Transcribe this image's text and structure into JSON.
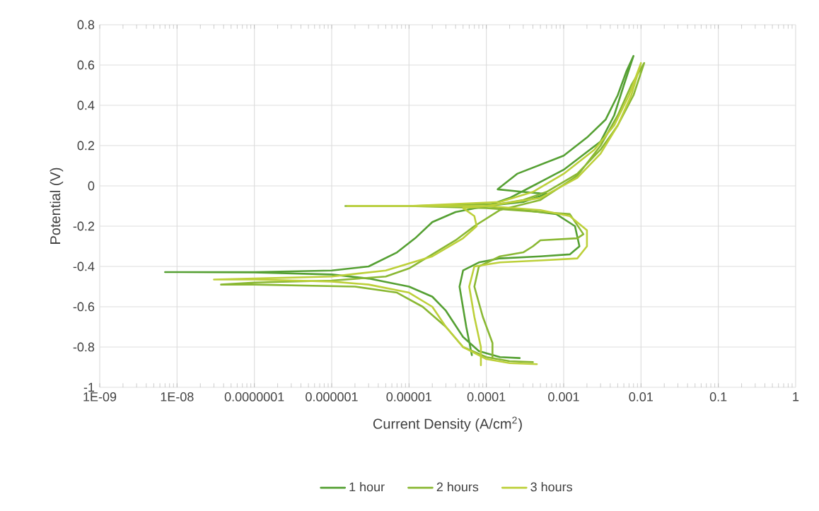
{
  "chart_data": {
    "type": "line",
    "xlabel": "Current Density (A/cm$^{2}$)",
    "ylabel": "Potential (V)",
    "log": "x",
    "xlim": [
      1e-09,
      1
    ],
    "ylim": [
      -1,
      0.8
    ],
    "xticks": [
      {
        "value": 1e-09,
        "label": "1E-09"
      },
      {
        "value": 1e-08,
        "label": "1E-08"
      },
      {
        "value": 1e-07,
        "label": "0.0000001"
      },
      {
        "value": 1e-06,
        "label": "0.000001"
      },
      {
        "value": 1e-05,
        "label": "0.00001"
      },
      {
        "value": 0.0001,
        "label": "0.0001"
      },
      {
        "value": 0.001,
        "label": "0.001"
      },
      {
        "value": 0.01,
        "label": "0.01"
      },
      {
        "value": 0.1,
        "label": "0.1"
      },
      {
        "value": 1,
        "label": "1"
      }
    ],
    "yticks": [
      -1,
      -0.8,
      -0.6,
      -0.4,
      -0.2,
      0,
      0.2,
      0.4,
      0.6,
      0.8
    ],
    "grid": true,
    "legend": "bottom",
    "marker": "none",
    "line_style": "solid",
    "series": [
      {
        "name": "1 hour",
        "color": "#55a033",
        "x": [
          0.00027,
          0.00015,
          8e-05,
          5e-05,
          3e-05,
          2e-05,
          1e-05,
          3e-06,
          1e-06,
          1e-07,
          7e-09,
          1e-07,
          1e-06,
          3e-06,
          7e-06,
          1.2e-05,
          2e-05,
          4e-05,
          0.0001,
          0.0003,
          0.0006,
          0.0003,
          0.00014,
          0.00025,
          0.001,
          0.002,
          0.0035,
          0.005,
          0.0065,
          0.008,
          0.006,
          0.0045,
          0.003,
          0.001,
          0.0004,
          0.0002,
          0.0001,
          0.0003,
          0.0008,
          0.0014,
          0.0016,
          0.0012,
          0.0005,
          0.00015,
          8e-05,
          5e-05,
          4.5e-05,
          5.5e-05,
          6.5e-05
        ],
        "values": [
          -0.855,
          -0.85,
          -0.82,
          -0.75,
          -0.62,
          -0.55,
          -0.5,
          -0.46,
          -0.44,
          -0.43,
          -0.428,
          -0.428,
          -0.42,
          -0.4,
          -0.33,
          -0.26,
          -0.18,
          -0.13,
          -0.1,
          -0.08,
          -0.04,
          -0.03,
          -0.017,
          0.06,
          0.15,
          0.24,
          0.33,
          0.45,
          0.57,
          0.645,
          0.5,
          0.35,
          0.22,
          0.08,
          0.0,
          -0.06,
          -0.1,
          -0.12,
          -0.14,
          -0.2,
          -0.3,
          -0.34,
          -0.35,
          -0.36,
          -0.38,
          -0.42,
          -0.5,
          -0.7,
          -0.84
        ]
      },
      {
        "name": "2 hours",
        "color": "#8ab833",
        "x": [
          0.0004,
          0.0002,
          0.0001,
          5e-05,
          3e-05,
          1.5e-05,
          7e-06,
          2e-06,
          1e-07,
          3.7e-08,
          1e-07,
          1e-06,
          5e-06,
          1e-05,
          2e-05,
          4e-05,
          7e-05,
          0.00015,
          0.0005,
          0.0015,
          0.003,
          0.005,
          0.0075,
          0.011,
          0.008,
          0.005,
          0.003,
          0.0015,
          0.0006,
          0.0003,
          0.00015,
          1e-05,
          1.5e-06,
          1e-05,
          0.0001,
          0.0005,
          0.0012,
          0.0018,
          0.0015,
          0.0005,
          0.0004,
          0.0003,
          0.00015,
          8e-05,
          7e-05,
          9e-05,
          0.00012,
          0.00012
        ],
        "values": [
          -0.875,
          -0.87,
          -0.85,
          -0.8,
          -0.7,
          -0.6,
          -0.53,
          -0.5,
          -0.49,
          -0.49,
          -0.48,
          -0.47,
          -0.45,
          -0.41,
          -0.34,
          -0.27,
          -0.2,
          -0.12,
          -0.07,
          0.05,
          0.2,
          0.35,
          0.5,
          0.61,
          0.45,
          0.3,
          0.18,
          0.06,
          -0.03,
          -0.07,
          -0.09,
          -0.1,
          -0.1,
          -0.1,
          -0.11,
          -0.13,
          -0.14,
          -0.24,
          -0.26,
          -0.27,
          -0.3,
          -0.33,
          -0.35,
          -0.4,
          -0.5,
          -0.65,
          -0.78,
          -0.85
        ]
      },
      {
        "name": "3 hours",
        "color": "#bdd03a",
        "x": [
          0.00045,
          0.0002,
          0.0001,
          5e-05,
          3e-05,
          2e-05,
          1e-05,
          3e-06,
          1e-06,
          1e-07,
          3e-08,
          1e-07,
          1e-06,
          5e-06,
          2e-05,
          5e-05,
          7.5e-05,
          7e-05,
          5e-05,
          0.0001,
          0.0005,
          0.0015,
          0.003,
          0.005,
          0.0075,
          0.01,
          0.007,
          0.0045,
          0.0025,
          0.001,
          0.0004,
          0.00015,
          1e-05,
          1.6e-06,
          1e-05,
          0.0001,
          0.0005,
          0.0012,
          0.002,
          0.002,
          0.0015,
          0.0005,
          0.00015,
          7e-05,
          6e-05,
          7e-05,
          8.5e-05,
          8.5e-05
        ],
        "values": [
          -0.885,
          -0.88,
          -0.86,
          -0.8,
          -0.7,
          -0.6,
          -0.53,
          -0.49,
          -0.475,
          -0.465,
          -0.465,
          -0.46,
          -0.45,
          -0.42,
          -0.35,
          -0.26,
          -0.2,
          -0.15,
          -0.11,
          -0.1,
          -0.06,
          0.04,
          0.16,
          0.3,
          0.45,
          0.61,
          0.45,
          0.3,
          0.18,
          0.06,
          -0.03,
          -0.08,
          -0.1,
          -0.1,
          -0.1,
          -0.1,
          -0.12,
          -0.15,
          -0.22,
          -0.3,
          -0.36,
          -0.37,
          -0.38,
          -0.4,
          -0.5,
          -0.65,
          -0.8,
          -0.89
        ]
      }
    ]
  }
}
